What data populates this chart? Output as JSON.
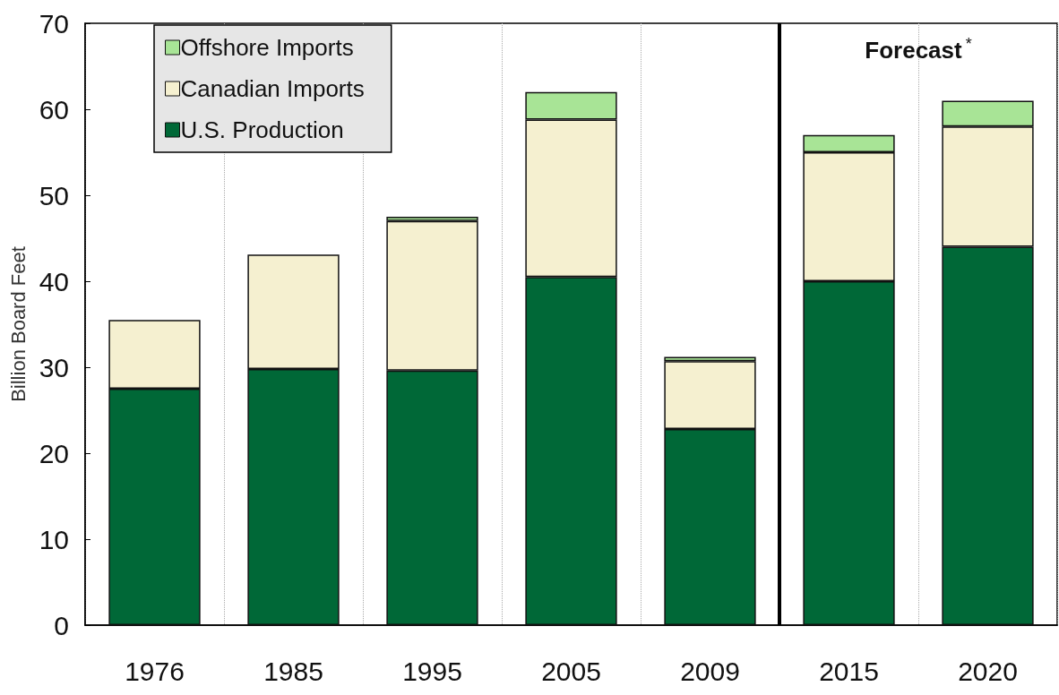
{
  "chart_data": {
    "type": "bar",
    "ylabel": "Billion Board Feet",
    "categories": [
      "1976",
      "1985",
      "1995",
      "2005",
      "2009",
      "2015",
      "2020"
    ],
    "stacked": true,
    "series": [
      {
        "name": "U.S. Production",
        "color": "#006837",
        "values": [
          27.5,
          29.8,
          29.6,
          40.5,
          22.8,
          40,
          44
        ]
      },
      {
        "name": "Canadian Imports",
        "color": "#f5f0d0",
        "values": [
          8.0,
          13.3,
          17.4,
          18.3,
          7.9,
          15,
          14
        ]
      },
      {
        "name": "Offshore Imports",
        "color": "#a8e496",
        "values": [
          null,
          null,
          0.5,
          3.2,
          0.5,
          2,
          3
        ]
      }
    ],
    "ylim": [
      0,
      70
    ],
    "yticks": [
      0,
      10,
      20,
      30,
      40,
      50,
      60,
      70
    ],
    "grid": "x",
    "legend": "top left",
    "ref_lines": [
      {
        "axis": "x",
        "value": "2015",
        "color": "#000000"
      }
    ],
    "annotations": [
      "Forecast$^{*}$"
    ]
  }
}
